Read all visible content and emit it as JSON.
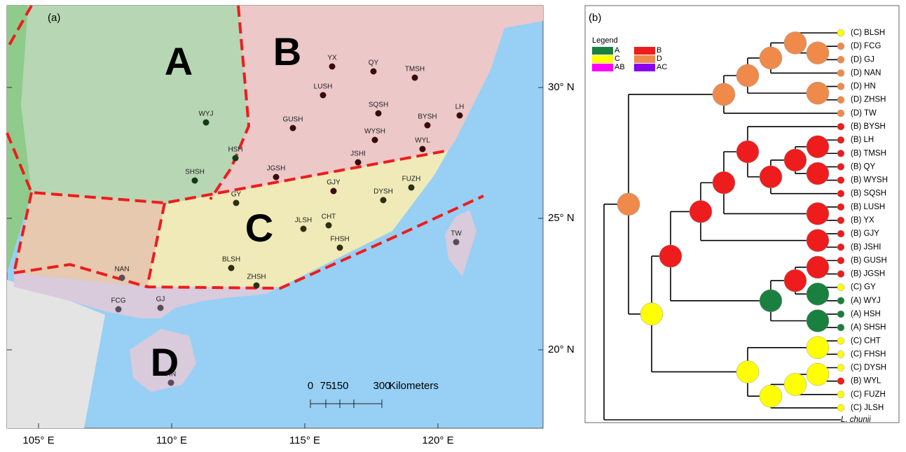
{
  "map": {
    "panel_label": "(a)",
    "regions": [
      "A",
      "B",
      "C",
      "D"
    ],
    "sites": [
      "YX",
      "QY",
      "TMSH",
      "LUSH",
      "SQSH",
      "LH",
      "GUSH",
      "BYSH",
      "WYJ",
      "WYSH",
      "WYL",
      "HSH",
      "JSHI",
      "JGSH",
      "SHSH",
      "GJY",
      "FUZH",
      "GY",
      "DYSH",
      "JLSH",
      "CHT",
      "TW",
      "FHSH",
      "BLSH",
      "NAN",
      "ZHSH",
      "FCG",
      "GJ",
      "HN"
    ],
    "lat_labels": [
      "30° N",
      "25° N",
      "20° N"
    ],
    "lon_labels": [
      "105° E",
      "110° E",
      "115° E",
      "120° E"
    ],
    "scale_bar": [
      "0",
      "75",
      "150",
      "300",
      "Kilometers"
    ]
  },
  "tree": {
    "panel_label": "(b)",
    "legend_title": "Legend",
    "legend_items": [
      "A",
      "B",
      "C",
      "D",
      "AB",
      "AC"
    ],
    "tips": [
      "(C) BLSH",
      "(D) FCG",
      "(D) GJ",
      "(D) NAN",
      "(D) HN",
      "(D) ZHSH",
      "(D) TW",
      "(B) BYSH",
      "(B) LH",
      "(B) TMSH",
      "(B) QY",
      "(B) WYSH",
      "(B) SQSH",
      "(B) LUSH",
      "(B) YX",
      "(B) GJY",
      "(B) JSHI",
      "(B) GUSH",
      "(B) JGSH",
      "(C) GY",
      "(A) WYJ",
      "(A) HSH",
      "(A) SHSH",
      "(C) CHT",
      "(C) FHSH",
      "(C) DYSH",
      "(B) WYL",
      "(C) FUZH",
      "(C) JLSH"
    ],
    "outgroup": "L. chunii"
  }
}
